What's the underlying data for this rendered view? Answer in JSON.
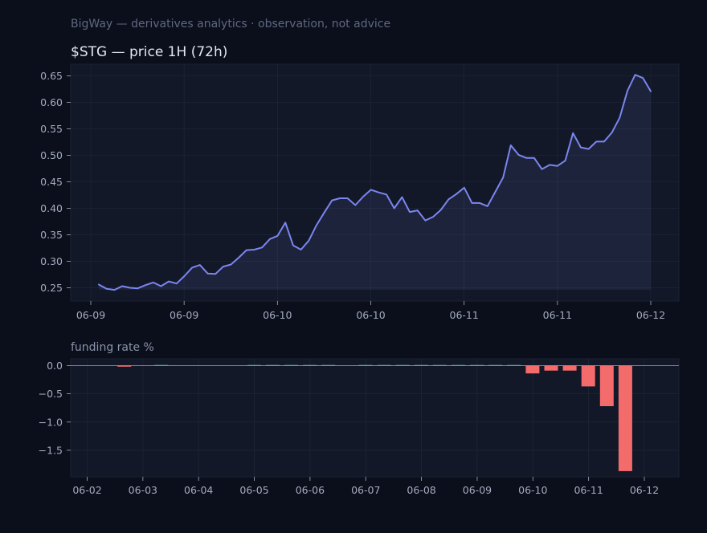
{
  "header": {
    "subtitle": "BigWay — derivatives analytics · observation, not advice"
  },
  "colors": {
    "background": "#0b0f1c",
    "panel": "#121828",
    "grid": "#1e2536",
    "price_line": "#7b86f0",
    "funding_positive": "#4fb8a8",
    "funding_negative": "#f46b6b",
    "tick_text": "#a4acc0",
    "title_text": "#e3e6ee",
    "muted_text": "#5f6880"
  },
  "chart_data": [
    {
      "type": "area",
      "title": "$STG — price 1H (72h)",
      "xlabel": "",
      "ylabel": "",
      "x_tick_labels": [
        "06-09",
        "06-09",
        "06-10",
        "06-10",
        "06-11",
        "06-11",
        "06-12"
      ],
      "ylim": [
        0.225,
        0.672
      ],
      "y_ticks": [
        0.25,
        0.3,
        0.35,
        0.4,
        0.45,
        0.5,
        0.55,
        0.6,
        0.65
      ],
      "y_tick_labels": [
        "0.25",
        "0.30",
        "0.35",
        "0.40",
        "0.45",
        "0.50",
        "0.55",
        "0.60",
        "0.65"
      ],
      "grid": true,
      "series": [
        {
          "values": [
            0.256,
            0.248,
            0.246,
            0.253,
            0.25,
            0.249,
            0.255,
            0.26,
            0.253,
            0.262,
            0.258,
            0.272,
            0.288,
            0.293,
            0.277,
            0.276,
            0.29,
            0.294,
            0.307,
            0.321,
            0.322,
            0.326,
            0.342,
            0.348,
            0.373,
            0.33,
            0.322,
            0.339,
            0.368,
            0.392,
            0.415,
            0.419,
            0.419,
            0.406,
            0.422,
            0.435,
            0.43,
            0.426,
            0.4,
            0.421,
            0.393,
            0.396,
            0.377,
            0.384,
            0.397,
            0.417,
            0.427,
            0.439,
            0.41,
            0.41,
            0.404,
            0.431,
            0.458,
            0.519,
            0.501,
            0.495,
            0.495,
            0.474,
            0.482,
            0.48,
            0.49,
            0.542,
            0.515,
            0.512,
            0.526,
            0.526,
            0.543,
            0.571,
            0.622,
            0.652,
            0.646,
            0.621
          ]
        }
      ]
    },
    {
      "type": "bar",
      "title": "funding rate %",
      "xlabel": "",
      "ylabel": "",
      "categories": [
        "06-02",
        "06-02",
        "06-02",
        "06-03",
        "06-03",
        "06-03",
        "06-04",
        "06-04",
        "06-04",
        "06-05",
        "06-05",
        "06-05",
        "06-06",
        "06-06",
        "06-06",
        "06-07",
        "06-07",
        "06-07",
        "06-08",
        "06-08",
        "06-08",
        "06-09",
        "06-09",
        "06-09",
        "06-10",
        "06-10",
        "06-10",
        "06-11",
        "06-11",
        "06-11"
      ],
      "x_tick_labels": [
        "06-02",
        "06-03",
        "06-04",
        "06-05",
        "06-06",
        "06-07",
        "06-08",
        "06-09",
        "06-10",
        "06-11",
        "06-12"
      ],
      "ylim": [
        -1.97,
        0.12
      ],
      "y_ticks": [
        0.0,
        -0.5,
        -1.0,
        -1.5
      ],
      "y_tick_labels": [
        "0.0",
        "−0.5",
        "−1.0",
        "−1.5"
      ],
      "grid": true,
      "values": [
        0.0,
        0.0,
        -0.02,
        0.0,
        0.01,
        0.0,
        0.0,
        0.0,
        0.0,
        0.01,
        0.01,
        0.01,
        0.01,
        0.01,
        0.0,
        0.01,
        0.01,
        0.01,
        0.01,
        0.01,
        0.01,
        0.01,
        0.01,
        0.01,
        -0.14,
        -0.09,
        -0.09,
        -0.37,
        -0.72,
        -1.87
      ]
    }
  ]
}
